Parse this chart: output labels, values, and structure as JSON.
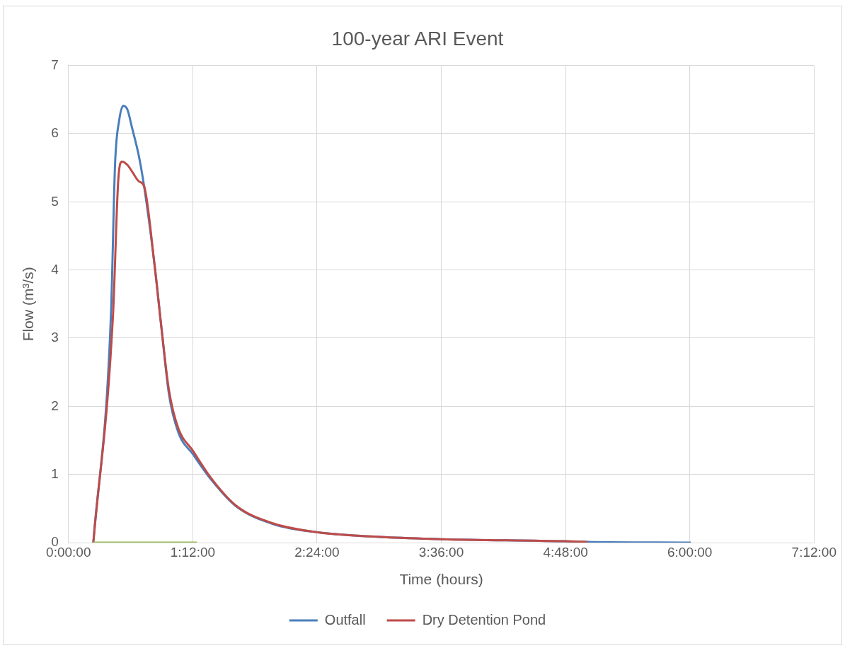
{
  "chart_data": {
    "type": "line",
    "title": "100-year ARI Event",
    "xlabel": "Time (hours)",
    "ylabel": "Flow (m³/s)",
    "xlim": [
      0,
      7.2
    ],
    "xticks": [
      {
        "value": 0,
        "label": "0:00:00"
      },
      {
        "value": 1.2,
        "label": "1:12:00"
      },
      {
        "value": 2.4,
        "label": "2:24:00"
      },
      {
        "value": 3.6,
        "label": "3:36:00"
      },
      {
        "value": 4.8,
        "label": "4:48:00"
      },
      {
        "value": 6,
        "label": "6:00:00"
      },
      {
        "value": 7.2,
        "label": "7:12:00"
      }
    ],
    "ylim": [
      0,
      7
    ],
    "yticks": [
      0,
      1,
      2,
      3,
      4,
      5,
      6,
      7
    ],
    "grid": true,
    "legend": "bottom",
    "marker": "none",
    "line_style": "solid",
    "series": [
      {
        "name": "Outfall",
        "color": "#4a7ebb",
        "x": [
          0.24,
          0.41,
          0.45,
          0.49,
          0.53,
          0.57,
          0.61,
          0.68,
          0.73,
          0.83,
          0.9,
          0.97,
          1.06,
          1.2,
          1.38,
          1.62,
          1.98,
          2.41,
          3.05,
          3.6,
          4.79,
          5.01,
          6.01
        ],
        "values": [
          0,
          3.34,
          5.56,
          6.2,
          6.41,
          6.35,
          6.11,
          5.67,
          5.23,
          4.09,
          3.12,
          2.18,
          1.62,
          1.3,
          0.92,
          0.53,
          0.27,
          0.15,
          0.08,
          0.05,
          0.02,
          0.01,
          0
        ]
      },
      {
        "name": "Dry Detention Pond",
        "color": "#be4b48",
        "x": [
          0.24,
          0.43,
          0.48,
          0.517,
          0.57,
          0.62,
          0.68,
          0.73,
          0.83,
          0.9,
          0.97,
          1.06,
          1.2,
          1.38,
          1.62,
          1.98,
          2.41,
          3.05,
          3.6,
          4.79,
          5.01
        ],
        "values": [
          0,
          3.34,
          5.3,
          5.59,
          5.54,
          5.43,
          5.3,
          5.23,
          4.09,
          3.12,
          2.24,
          1.68,
          1.35,
          0.94,
          0.54,
          0.28,
          0.15,
          0.08,
          0.05,
          0.02,
          0.01
        ]
      },
      {
        "color": "#9bbb59",
        "x": [
          0.24,
          1.24
        ],
        "values": [
          0,
          0
        ]
      }
    ]
  }
}
